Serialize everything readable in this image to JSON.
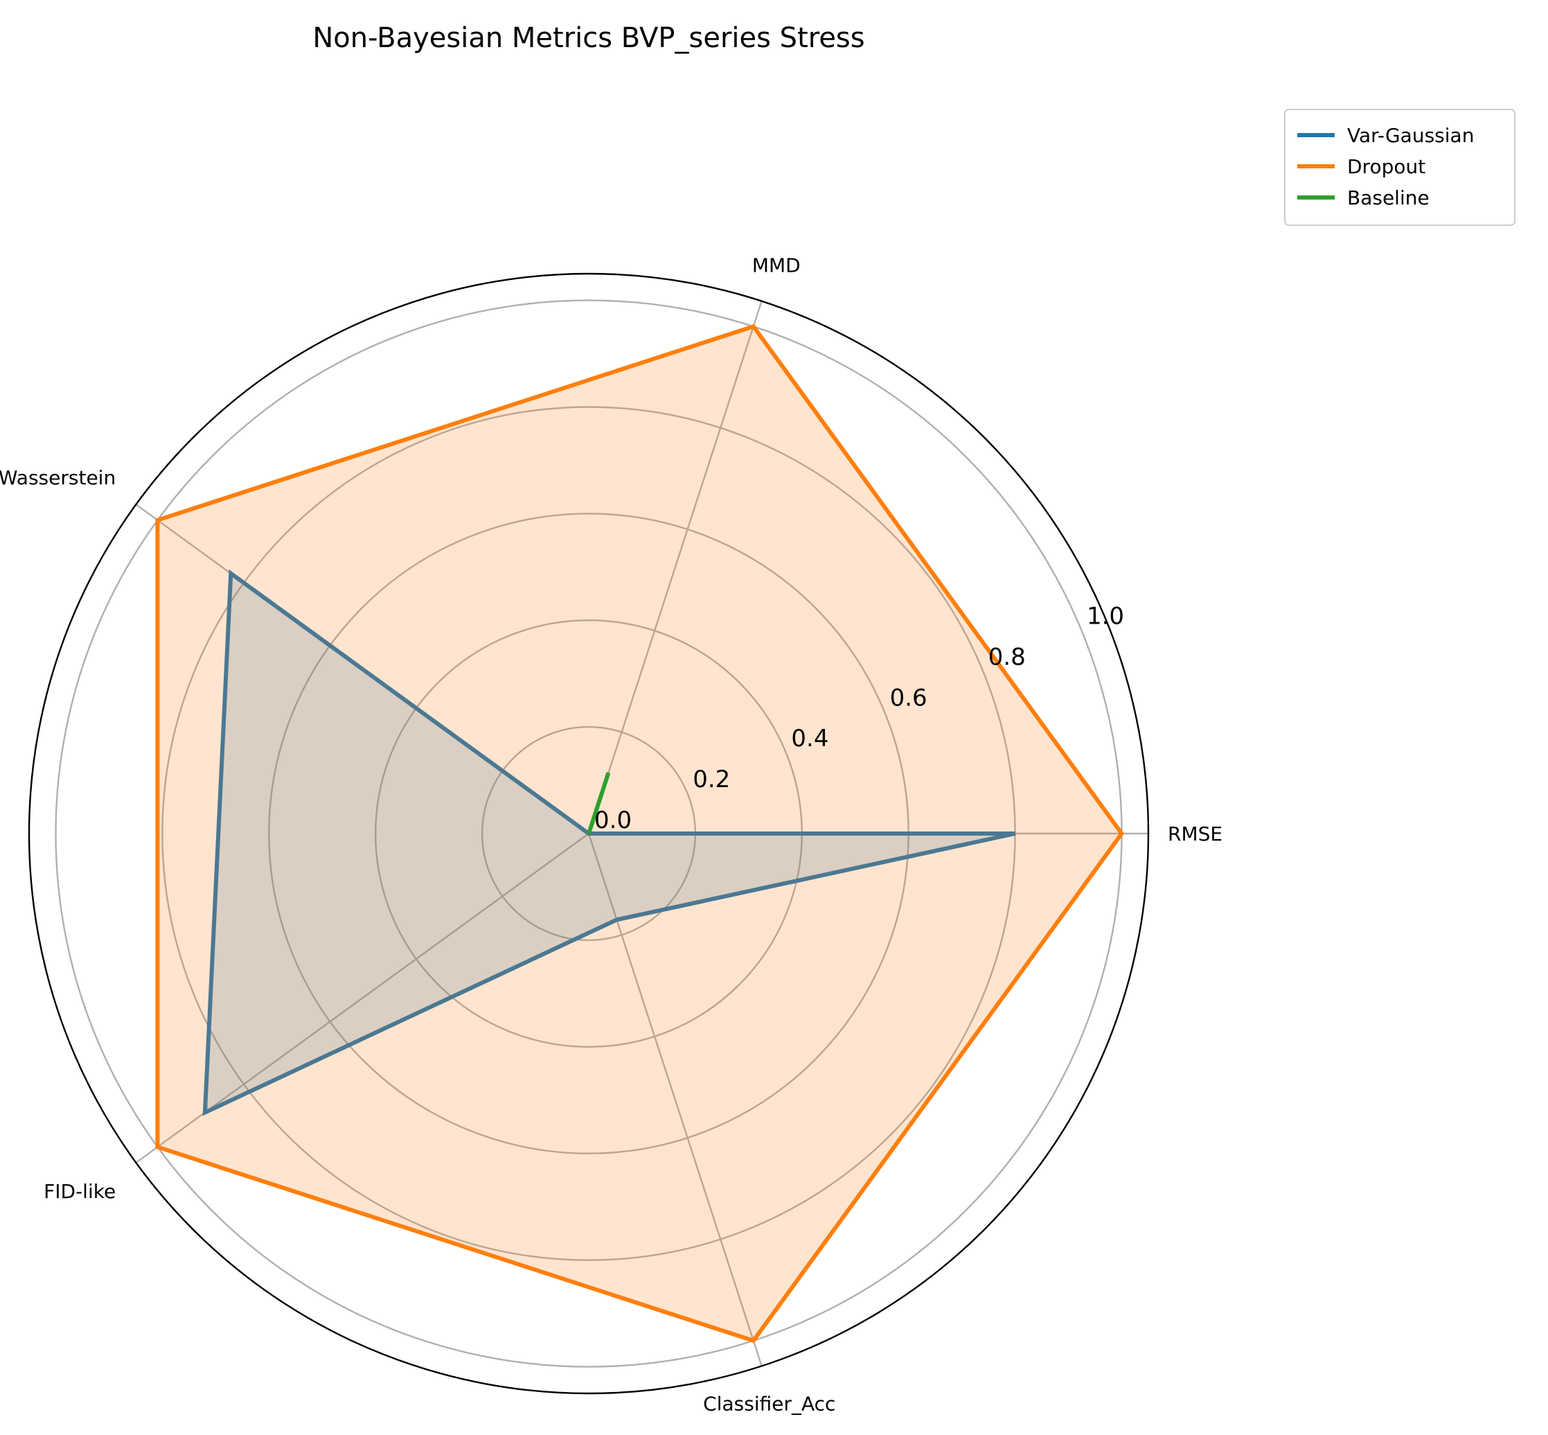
{
  "chart_data": {
    "type": "radar",
    "title": "Non-Bayesian Metrics BVP_series Stress",
    "categories": [
      "RMSE",
      "MMD",
      "Wasserstein",
      "FID-like",
      "Classifier_Acc"
    ],
    "rlim": [
      0,
      1.05
    ],
    "rticks": [
      0.0,
      0.2,
      0.4,
      0.6,
      0.8,
      1.0
    ],
    "rtick_labels": [
      "0.0",
      "0.2",
      "0.4",
      "0.6",
      "0.8",
      "1.0"
    ],
    "grid": true,
    "legend_position": "top-right outside",
    "series": [
      {
        "name": "Var-Gaussian",
        "color": "#1f77b4",
        "fill": true,
        "values": [
          0.8,
          0.0,
          0.83,
          0.89,
          0.17
        ]
      },
      {
        "name": "Dropout",
        "color": "#ff7f0e",
        "fill": true,
        "values": [
          1.0,
          1.0,
          1.0,
          1.0,
          1.0
        ]
      },
      {
        "name": "Baseline",
        "color": "#2ca02c",
        "fill": false,
        "values": [
          0.0,
          0.12,
          0.0,
          0.0,
          0.0
        ]
      }
    ]
  }
}
